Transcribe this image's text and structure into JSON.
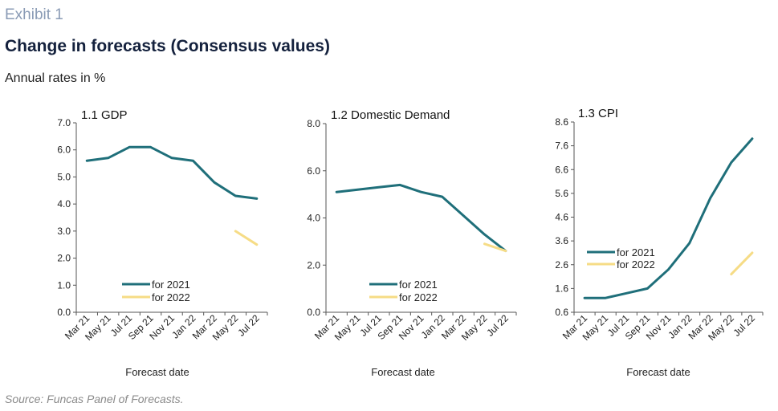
{
  "header": {
    "exhibit": "Exhibit 1",
    "title": "Change in forecasts (Consensus values)",
    "subtitle": "Annual rates in %"
  },
  "footer": {
    "source": "Source: Funcas Panel of Forecasts."
  },
  "colors": {
    "series_2021": "#1f6f7a",
    "series_2022": "#f6dc86",
    "axis": "#555555"
  },
  "chart_data": [
    {
      "type": "line",
      "title": "1.1 GDP",
      "xlabel": "Forecast date",
      "ylabel": "",
      "categories": [
        "Mar 21",
        "May 21",
        "Jul 21",
        "Sep 21",
        "Nov 21",
        "Jan 22",
        "Mar 22",
        "May 22",
        "Jul 22"
      ],
      "ylim": [
        0,
        7
      ],
      "yticks": [
        "0.0",
        "1.0",
        "2.0",
        "3.0",
        "4.0",
        "5.0",
        "6.0",
        "7.0"
      ],
      "legend_placement": "bottom-center",
      "grid": false,
      "series": [
        {
          "name": "for 2021",
          "values": [
            5.6,
            5.7,
            6.1,
            6.1,
            5.7,
            5.6,
            4.8,
            4.3,
            4.2
          ]
        },
        {
          "name": "for 2022",
          "values": [
            null,
            null,
            null,
            null,
            null,
            null,
            null,
            3.0,
            2.5
          ]
        }
      ]
    },
    {
      "type": "line",
      "title": "1.2 Domestic Demand",
      "xlabel": "Forecast date",
      "ylabel": "",
      "categories": [
        "Mar 21",
        "May 21",
        "Jul 21",
        "Sep 21",
        "Nov 21",
        "Jan 22",
        "Mar 22",
        "May 22",
        "Jul 22"
      ],
      "ylim": [
        0,
        8
      ],
      "yticks": [
        "0.0",
        "2.0",
        "4.0",
        "6.0",
        "8.0"
      ],
      "legend_placement": "bottom-center",
      "grid": false,
      "series": [
        {
          "name": "for 2021",
          "values": [
            5.1,
            5.2,
            5.3,
            5.4,
            5.1,
            4.9,
            4.1,
            3.3,
            2.6
          ]
        },
        {
          "name": "for 2022",
          "values": [
            null,
            null,
            null,
            null,
            null,
            null,
            null,
            2.9,
            2.6
          ]
        }
      ]
    },
    {
      "type": "line",
      "title": "1.3 CPI",
      "xlabel": "Forecast date",
      "ylabel": "",
      "categories": [
        "Mar 21",
        "May 21",
        "Jul 21",
        "Sep 21",
        "Nov 21",
        "Jan 22",
        "Mar 22",
        "May 22",
        "Jul 22"
      ],
      "ylim": [
        0.6,
        8.6
      ],
      "yticks": [
        "0.6",
        "1.6",
        "2.6",
        "3.6",
        "4.6",
        "5.6",
        "6.6",
        "7.6",
        "8.6"
      ],
      "legend_placement": "center-left",
      "grid": false,
      "series": [
        {
          "name": "for 2021",
          "values": [
            1.2,
            1.2,
            1.4,
            1.6,
            2.4,
            3.5,
            5.4,
            6.9,
            7.9
          ]
        },
        {
          "name": "for 2022",
          "values": [
            null,
            null,
            null,
            null,
            null,
            null,
            null,
            2.2,
            3.1
          ]
        }
      ]
    }
  ]
}
